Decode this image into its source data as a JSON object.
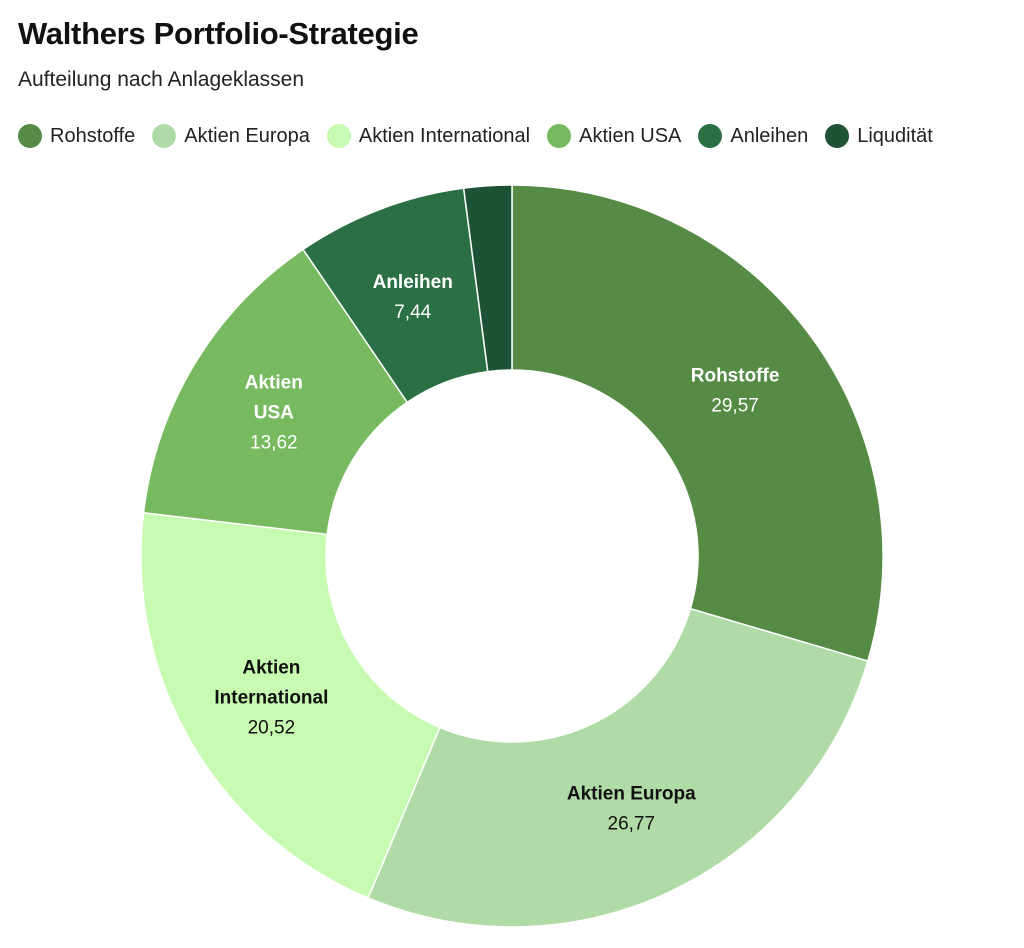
{
  "chart_data": {
    "type": "pie",
    "title": "Walthers Portfolio-Strategie",
    "subtitle": "Aufteilung nach Anlageklassen",
    "legend_placement": "top-left",
    "slices": [
      {
        "label": "Rohstoffe",
        "value": 29.57,
        "value_text": "29,57",
        "display_label": [
          "Rohstoffe"
        ],
        "color": "#558b44",
        "text_color": "#ffffff"
      },
      {
        "label": "Aktien Europa",
        "value": 26.77,
        "value_text": "26,77",
        "display_label": [
          "Aktien Europa"
        ],
        "color": "#b1dba6",
        "text_color": "#111111"
      },
      {
        "label": "Aktien International",
        "value": 20.52,
        "value_text": "20,52",
        "display_label": [
          "Aktien",
          "International"
        ],
        "color": "#c7fbb1",
        "text_color": "#111111"
      },
      {
        "label": "Aktien USA",
        "value": 13.62,
        "value_text": "13,62",
        "display_label": [
          "Aktien",
          "USA"
        ],
        "color": "#78ba60",
        "text_color": "#ffffff"
      },
      {
        "label": "Anleihen",
        "value": 7.44,
        "value_text": "7,44",
        "display_label": [
          "Anleihen"
        ],
        "color": "#2a7044",
        "text_color": "#ffffff"
      },
      {
        "label": "Liqudität",
        "value": 2.08,
        "value_text": "",
        "display_label": [],
        "color": "#1e5234",
        "text_color": "#ffffff"
      }
    ]
  }
}
